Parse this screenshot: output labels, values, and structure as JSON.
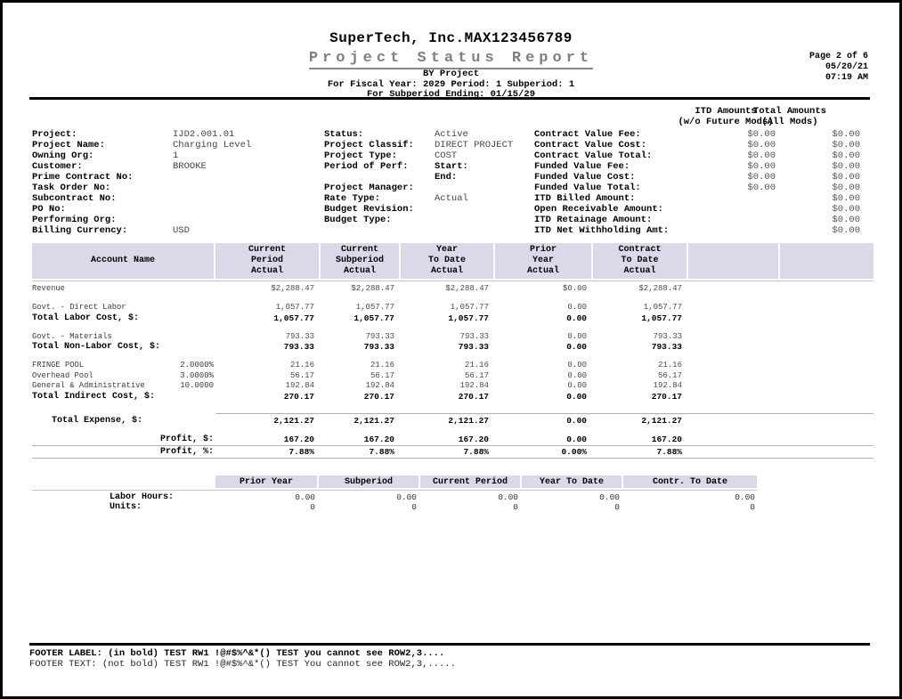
{
  "header": {
    "company": "SuperTech, Inc.MAX123456789",
    "title": "Project Status Report",
    "by_line": "BY Project",
    "fiscal_line": "For Fiscal Year: 2029 Period: 1 Subperiod: 1",
    "ending_line": "For Subperiod Ending: 01/15/29"
  },
  "page_info": {
    "page": "Page 2 of 6",
    "date": "05/20/21",
    "time": "07:19 AM"
  },
  "info_panel": {
    "amounts_header": {
      "itd_line1": "ITD Amounts",
      "itd_line2": "(w/o Future Mods)",
      "total_line1": "Total Amounts",
      "total_line2": "(All Mods)"
    },
    "rows": [
      {
        "l_label": "Project:",
        "l_value": "IJD2.001.01",
        "m_label": "Status:",
        "m_value": "Active",
        "m_cls": "",
        "r_label": "Contract Value Fee:",
        "itd": "$0.00",
        "total": "$0.00"
      },
      {
        "l_label": "Project Name:",
        "l_value": "Charging Level",
        "m_label": "Project Classif:",
        "m_value": "DIRECT PROJECT",
        "m_cls": "",
        "r_label": "Contract Value Cost:",
        "itd": "$0.00",
        "total": "$0.00"
      },
      {
        "l_label": "Owning Org:",
        "l_value": "1",
        "m_label": "Project Type:",
        "m_value": "COST",
        "m_cls": "",
        "r_label": "Contract Value Total:",
        "itd": "$0.00",
        "total": "$0.00"
      },
      {
        "l_label": "Customer:",
        "l_value": "BROOKE",
        "m_label": "Period of Perf:",
        "m_value": "Start:",
        "m_cls": "bold",
        "r_label": "Funded Value Fee:",
        "itd": "$0.00",
        "total": "$0.00"
      },
      {
        "l_label": "Prime Contract No:",
        "l_value": "",
        "m_label": "",
        "m_value": "End:",
        "m_cls": "bold",
        "r_label": "Funded Value Cost:",
        "itd": "$0.00",
        "total": "$0.00"
      },
      {
        "l_label": "Task Order No:",
        "l_value": "",
        "m_label": "Project Manager:",
        "m_value": "",
        "m_cls": "",
        "r_label": "Funded Value Total:",
        "itd": "$0.00",
        "total": "$0.00"
      },
      {
        "l_label": "Subcontract No:",
        "l_value": "",
        "m_label": "Rate Type:",
        "m_value": "Actual",
        "m_cls": "",
        "r_label": "ITD Billed Amount:",
        "itd": "",
        "total": "$0.00"
      },
      {
        "l_label": "PO No:",
        "l_value": "",
        "m_label": "Budget Revision:",
        "m_value": "",
        "m_cls": "",
        "r_label": "Open Receivable Amount:",
        "itd": "",
        "total": "$0.00"
      },
      {
        "l_label": "Performing Org:",
        "l_value": "",
        "m_label": "Budget Type:",
        "m_value": "",
        "m_cls": "",
        "r_label": "ITD Retainage Amount:",
        "itd": "",
        "total": "$0.00"
      },
      {
        "l_label": "Billing Currency:",
        "l_value": "USD",
        "m_label": "",
        "m_value": "",
        "m_cls": "",
        "r_label": "ITD Net Withholding Amt:",
        "itd": "",
        "total": "$0.00"
      }
    ]
  },
  "main_table": {
    "headers": [
      "Account Name",
      "Current\nPeriod\nActual",
      "Current\nSubperiod\nActual",
      "Year\nTo Date\nActual",
      "Prior\nYear\nActual",
      "Contract\nTo Date\nActual",
      "",
      ""
    ],
    "rows": [
      {
        "cls": "plain",
        "label": "Revenue",
        "rate": "",
        "values": [
          "$2,288.47",
          "$2,288.47",
          "$2,288.47",
          "$0.00",
          "$2,288.47"
        ]
      },
      {
        "cls": "blank",
        "label": "",
        "rate": "",
        "values": [
          "",
          "",
          "",
          "",
          ""
        ]
      },
      {
        "cls": "plain",
        "label": "Govt. - Direct Labor",
        "rate": "",
        "values": [
          "1,057.77",
          "1,057.77",
          "1,057.77",
          "0.00",
          "1,057.77"
        ]
      },
      {
        "cls": "total",
        "label": "Total Labor Cost, $:",
        "rate": "",
        "values": [
          "1,057.77",
          "1,057.77",
          "1,057.77",
          "0.00",
          "1,057.77"
        ]
      },
      {
        "cls": "blank",
        "label": "",
        "rate": "",
        "values": [
          "",
          "",
          "",
          "",
          ""
        ]
      },
      {
        "cls": "plain",
        "label": "Govt. - Materials",
        "rate": "",
        "values": [
          "793.33",
          "793.33",
          "793.33",
          "0.00",
          "793.33"
        ]
      },
      {
        "cls": "total",
        "label": "Total Non-Labor Cost, $:",
        "rate": "",
        "values": [
          "793.33",
          "793.33",
          "793.33",
          "0.00",
          "793.33"
        ]
      },
      {
        "cls": "blank",
        "label": "",
        "rate": "",
        "values": [
          "",
          "",
          "",
          "",
          ""
        ]
      },
      {
        "cls": "plain",
        "label": "FRINGE POOL",
        "rate": "2.0000%",
        "values": [
          "21.16",
          "21.16",
          "21.16",
          "0.00",
          "21.16"
        ]
      },
      {
        "cls": "plain",
        "label": "Overhead Pool",
        "rate": "3.0000%",
        "values": [
          "56.17",
          "56.17",
          "56.17",
          "0.00",
          "56.17"
        ]
      },
      {
        "cls": "plain",
        "label": "General & Administrative",
        "rate": "10.0000",
        "values": [
          "192.84",
          "192.84",
          "192.84",
          "0.00",
          "192.84"
        ]
      },
      {
        "cls": "total",
        "label": "Total Indirect Cost, $:",
        "rate": "",
        "values": [
          "270.17",
          "270.17",
          "270.17",
          "0.00",
          "270.17"
        ]
      },
      {
        "cls": "blank",
        "label": "",
        "rate": "",
        "values": [
          "",
          "",
          "",
          "",
          ""
        ]
      },
      {
        "cls": "expense",
        "label": "Total Expense, $:",
        "rate": "",
        "values": [
          "2,121.27",
          "2,121.27",
          "2,121.27",
          "0.00",
          "2,121.27"
        ]
      },
      {
        "cls": "blank",
        "label": "",
        "rate": "",
        "values": [
          "",
          "",
          "",
          "",
          ""
        ]
      },
      {
        "cls": "profit-d",
        "label": "Profit, $:",
        "rate": "",
        "values": [
          "167.20",
          "167.20",
          "167.20",
          "0.00",
          "167.20"
        ]
      },
      {
        "cls": "profit-pct",
        "label": "Profit, %:",
        "rate": "",
        "values": [
          "7.88%",
          "7.88%",
          "7.88%",
          "0.00%",
          "7.88%"
        ]
      }
    ]
  },
  "hours_table": {
    "headers": [
      "Prior Year",
      "Subperiod",
      "Current Period",
      "Year To Date",
      "Contr. To Date"
    ],
    "rows": [
      {
        "label": "Labor Hours:",
        "values": [
          "0.00",
          "0.00",
          "0.00",
          "0.00",
          "0.00"
        ]
      },
      {
        "label": "Units:",
        "values": [
          "0",
          "0",
          "0",
          "0",
          "0"
        ]
      }
    ]
  },
  "footer": {
    "label_line": "FOOTER LABEL: (in bold) TEST RW1 !@#$%^&*() TEST you cannot see ROW2,3....",
    "text_line": "FOOTER TEXT: (not bold) TEST RW1 !@#$%^&*() TEST You cannot see ROW2,3,....."
  },
  "colors": {
    "band_lavender": "#d9d9e9",
    "title_gray": "#808080",
    "rule_black": "#000000",
    "hairline_gray": "#b0b0bc"
  }
}
